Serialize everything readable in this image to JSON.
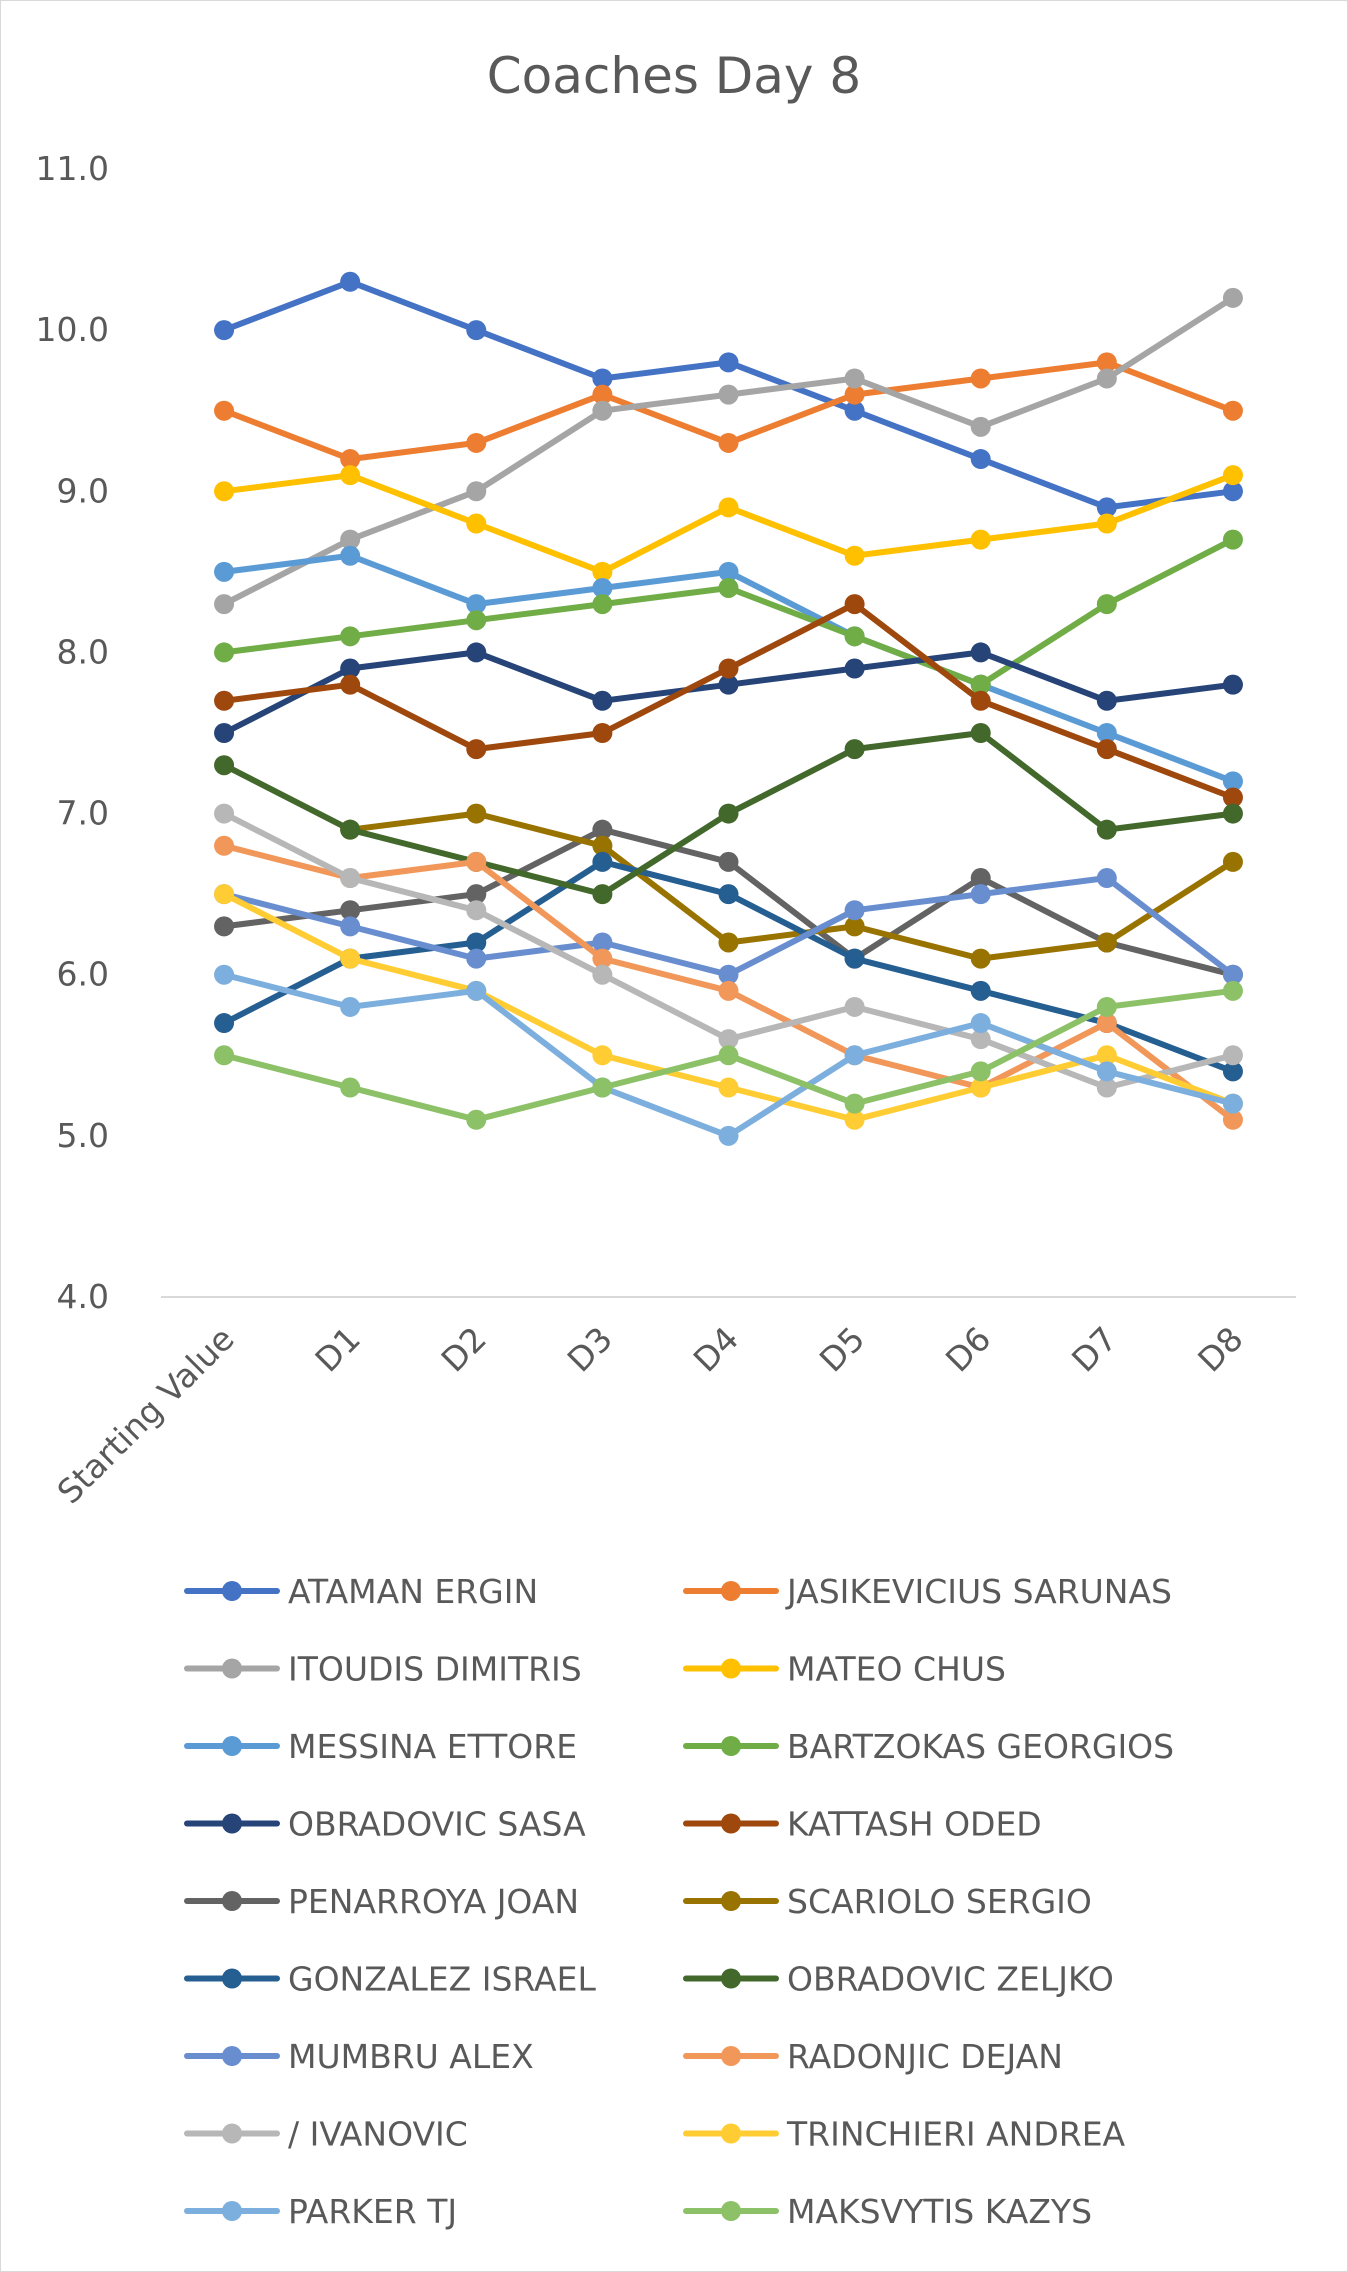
{
  "chart_data": {
    "type": "line",
    "title": "Coaches Day 8",
    "xlabel": "",
    "ylabel": "",
    "categories": [
      "Starting Value",
      "D1",
      "D2",
      "D3",
      "D4",
      "D5",
      "D6",
      "D7",
      "D8"
    ],
    "ylim": [
      4.0,
      11.0
    ],
    "yticks": [
      "4.0",
      "5.0",
      "6.0",
      "7.0",
      "8.0",
      "9.0",
      "10.0",
      "11.0"
    ],
    "grid": false,
    "legend": "bottom",
    "series": [
      {
        "name": "ATAMAN ERGIN",
        "color": "#4472c4",
        "values": [
          10.0,
          10.3,
          10.0,
          9.7,
          9.8,
          9.5,
          9.2,
          8.9,
          9.0
        ]
      },
      {
        "name": "JASIKEVICIUS SARUNAS",
        "color": "#ed7d31",
        "values": [
          9.5,
          9.2,
          9.3,
          9.6,
          9.3,
          9.6,
          9.7,
          9.8,
          9.5
        ]
      },
      {
        "name": "ITOUDIS DIMITRIS",
        "color": "#a5a5a5",
        "values": [
          8.3,
          8.7,
          9.0,
          9.5,
          9.6,
          9.7,
          9.4,
          9.7,
          10.2
        ]
      },
      {
        "name": "MATEO CHUS",
        "color": "#ffc000",
        "values": [
          9.0,
          9.1,
          8.8,
          8.5,
          8.9,
          8.6,
          8.7,
          8.8,
          9.1
        ]
      },
      {
        "name": "MESSINA ETTORE",
        "color": "#5b9bd5",
        "values": [
          8.5,
          8.6,
          8.3,
          8.4,
          8.5,
          8.1,
          7.8,
          7.5,
          7.2
        ]
      },
      {
        "name": "BARTZOKAS GEORGIOS",
        "color": "#70ad47",
        "values": [
          8.0,
          8.1,
          8.2,
          8.3,
          8.4,
          8.1,
          7.8,
          8.3,
          8.7
        ]
      },
      {
        "name": "OBRADOVIC SASA",
        "color": "#264478",
        "values": [
          7.5,
          7.9,
          8.0,
          7.7,
          7.8,
          7.9,
          8.0,
          7.7,
          7.8
        ]
      },
      {
        "name": "KATTASH ODED",
        "color": "#9e480e",
        "values": [
          7.7,
          7.8,
          7.4,
          7.5,
          7.9,
          8.3,
          7.7,
          7.4,
          7.1
        ]
      },
      {
        "name": "PENARROYA JOAN",
        "color": "#636363",
        "values": [
          6.3,
          6.4,
          6.5,
          6.9,
          6.7,
          6.1,
          6.6,
          6.2,
          6.0
        ]
      },
      {
        "name": "SCARIOLO SERGIO",
        "color": "#997300",
        "values": [
          null,
          6.9,
          7.0,
          6.8,
          6.2,
          6.3,
          6.1,
          6.2,
          6.7
        ]
      },
      {
        "name": "GONZALEZ ISRAEL",
        "color": "#255e91",
        "values": [
          5.7,
          6.1,
          6.2,
          6.7,
          6.5,
          6.1,
          5.9,
          5.7,
          5.4
        ]
      },
      {
        "name": "OBRADOVIC ZELJKO",
        "color": "#43682b",
        "values": [
          7.3,
          6.9,
          6.7,
          6.5,
          7.0,
          7.4,
          7.5,
          6.9,
          7.0
        ]
      },
      {
        "name": "MUMBRU ALEX",
        "color": "#698ed0",
        "values": [
          6.5,
          6.3,
          6.1,
          6.2,
          6.0,
          6.4,
          6.5,
          6.6,
          6.0
        ]
      },
      {
        "name": "RADONJIC DEJAN",
        "color": "#f1975a",
        "values": [
          6.8,
          6.6,
          6.7,
          6.1,
          5.9,
          5.5,
          5.3,
          5.7,
          5.1
        ]
      },
      {
        "name": "/ IVANOVIC",
        "color": "#b7b7b7",
        "values": [
          7.0,
          6.6,
          6.4,
          6.0,
          5.6,
          5.8,
          5.6,
          5.3,
          5.5
        ]
      },
      {
        "name": "TRINCHIERI ANDREA",
        "color": "#ffcd33",
        "values": [
          6.5,
          6.1,
          5.9,
          5.5,
          5.3,
          5.1,
          5.3,
          5.5,
          5.2
        ]
      },
      {
        "name": "PARKER TJ",
        "color": "#7cafdd",
        "values": [
          6.0,
          5.8,
          5.9,
          5.3,
          5.0,
          5.5,
          5.7,
          5.4,
          5.2
        ]
      },
      {
        "name": "MAKSVYTIS KAZYS",
        "color": "#8cc168",
        "values": [
          5.5,
          5.3,
          5.1,
          5.3,
          5.5,
          5.2,
          5.4,
          5.8,
          5.9
        ]
      }
    ]
  }
}
